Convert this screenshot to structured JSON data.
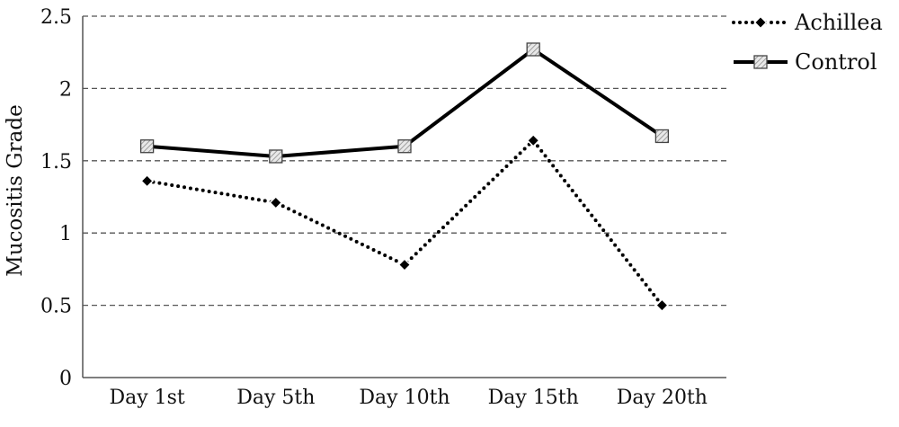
{
  "chart_data": {
    "type": "line",
    "categories": [
      "Day 1st",
      "Day 5th",
      "Day 10th",
      "Day 15th",
      "Day 20th"
    ],
    "series": [
      {
        "name": "Achillea",
        "values": [
          1.36,
          1.21,
          0.78,
          1.64,
          0.5
        ],
        "line_style": "dotted",
        "marker": "diamond",
        "color": "#000000"
      },
      {
        "name": "Control",
        "values": [
          1.6,
          1.53,
          1.6,
          2.27,
          1.67
        ],
        "line_style": "solid",
        "marker": "hatched-square",
        "color": "#000000"
      }
    ],
    "title": "",
    "xlabel": "",
    "ylabel": "Mucositis Grade",
    "ylim": [
      0,
      2.5
    ],
    "yticks": [
      "0",
      "0.5",
      "1",
      "1.5",
      "2",
      "2.5"
    ],
    "grid": "horizontal-dashed",
    "legend_position": "top-right"
  }
}
